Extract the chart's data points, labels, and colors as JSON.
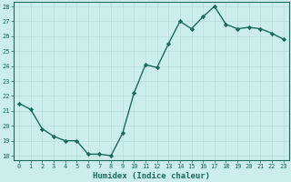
{
  "x": [
    0,
    1,
    2,
    3,
    4,
    5,
    6,
    7,
    8,
    9,
    10,
    11,
    12,
    13,
    14,
    15,
    16,
    17,
    18,
    19,
    20,
    21,
    22,
    23
  ],
  "y": [
    21.5,
    21.1,
    19.8,
    19.3,
    19.0,
    19.0,
    18.1,
    18.1,
    18.0,
    19.5,
    22.2,
    24.1,
    23.9,
    25.5,
    27.0,
    26.5,
    27.3,
    28.0,
    26.8,
    26.5,
    26.6,
    26.5,
    26.2,
    25.8
  ],
  "line_color": "#1a6b5a",
  "marker": "D",
  "marker_size": 2.2,
  "bg_color": "#cceee8",
  "grid_color": "#b8ddd8",
  "xlabel": "Humidex (Indice chaleur)",
  "ylim": [
    18,
    28
  ],
  "xlim": [
    -0.5,
    23.5
  ],
  "yticks": [
    18,
    19,
    20,
    21,
    22,
    23,
    24,
    25,
    26,
    27,
    28
  ],
  "xticks": [
    0,
    1,
    2,
    3,
    4,
    5,
    6,
    7,
    8,
    9,
    10,
    11,
    12,
    13,
    14,
    15,
    16,
    17,
    18,
    19,
    20,
    21,
    22,
    23
  ],
  "tick_color": "#1a6b5a",
  "label_color": "#1a6b5a",
  "tick_fontsize": 5.0,
  "xlabel_fontsize": 6.5,
  "linewidth": 1.0
}
